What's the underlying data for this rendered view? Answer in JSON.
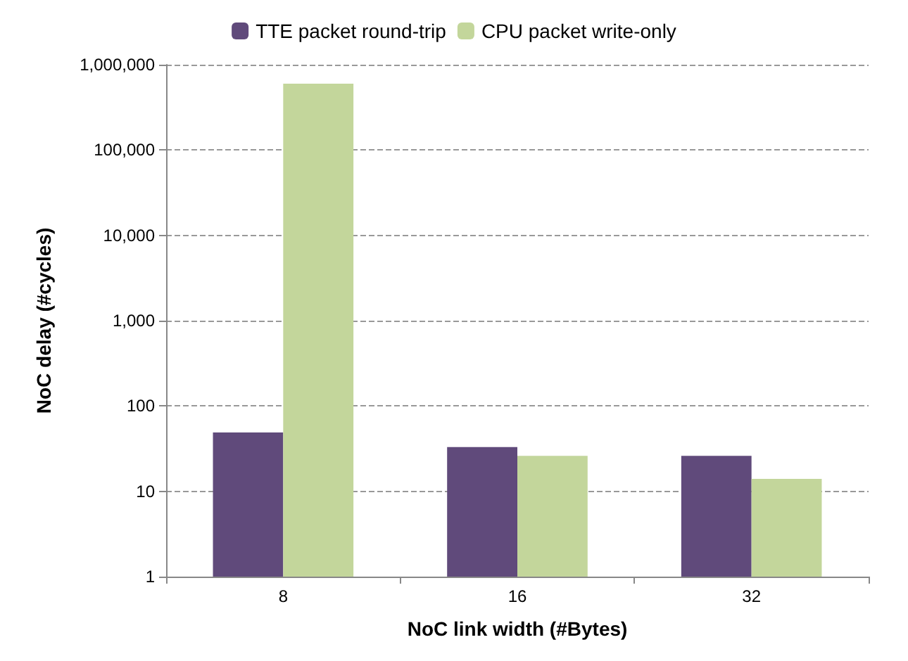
{
  "chart_data": {
    "type": "bar",
    "xlabel": "NoC link width (#Bytes)",
    "ylabel": "NoC delay (#cycles)",
    "categories": [
      "8",
      "16",
      "32"
    ],
    "series": [
      {
        "name": "TTE packet round-trip",
        "color": "#604a7b",
        "values": [
          49,
          33,
          26
        ]
      },
      {
        "name": "CPU packet write-only",
        "color": "#c3d69b",
        "values": [
          600000,
          26,
          14
        ]
      }
    ],
    "log": "y",
    "ylim": [
      1,
      1000000
    ],
    "yticks": [
      1,
      10,
      100,
      {
        "value": 1000,
        "label": "1,000"
      },
      {
        "value": 10000,
        "label": "10,000"
      },
      {
        "value": 100000,
        "label": "100,000"
      },
      {
        "value": 1000000,
        "label": "1,000,000"
      }
    ],
    "grid": "y",
    "legend": "top"
  }
}
